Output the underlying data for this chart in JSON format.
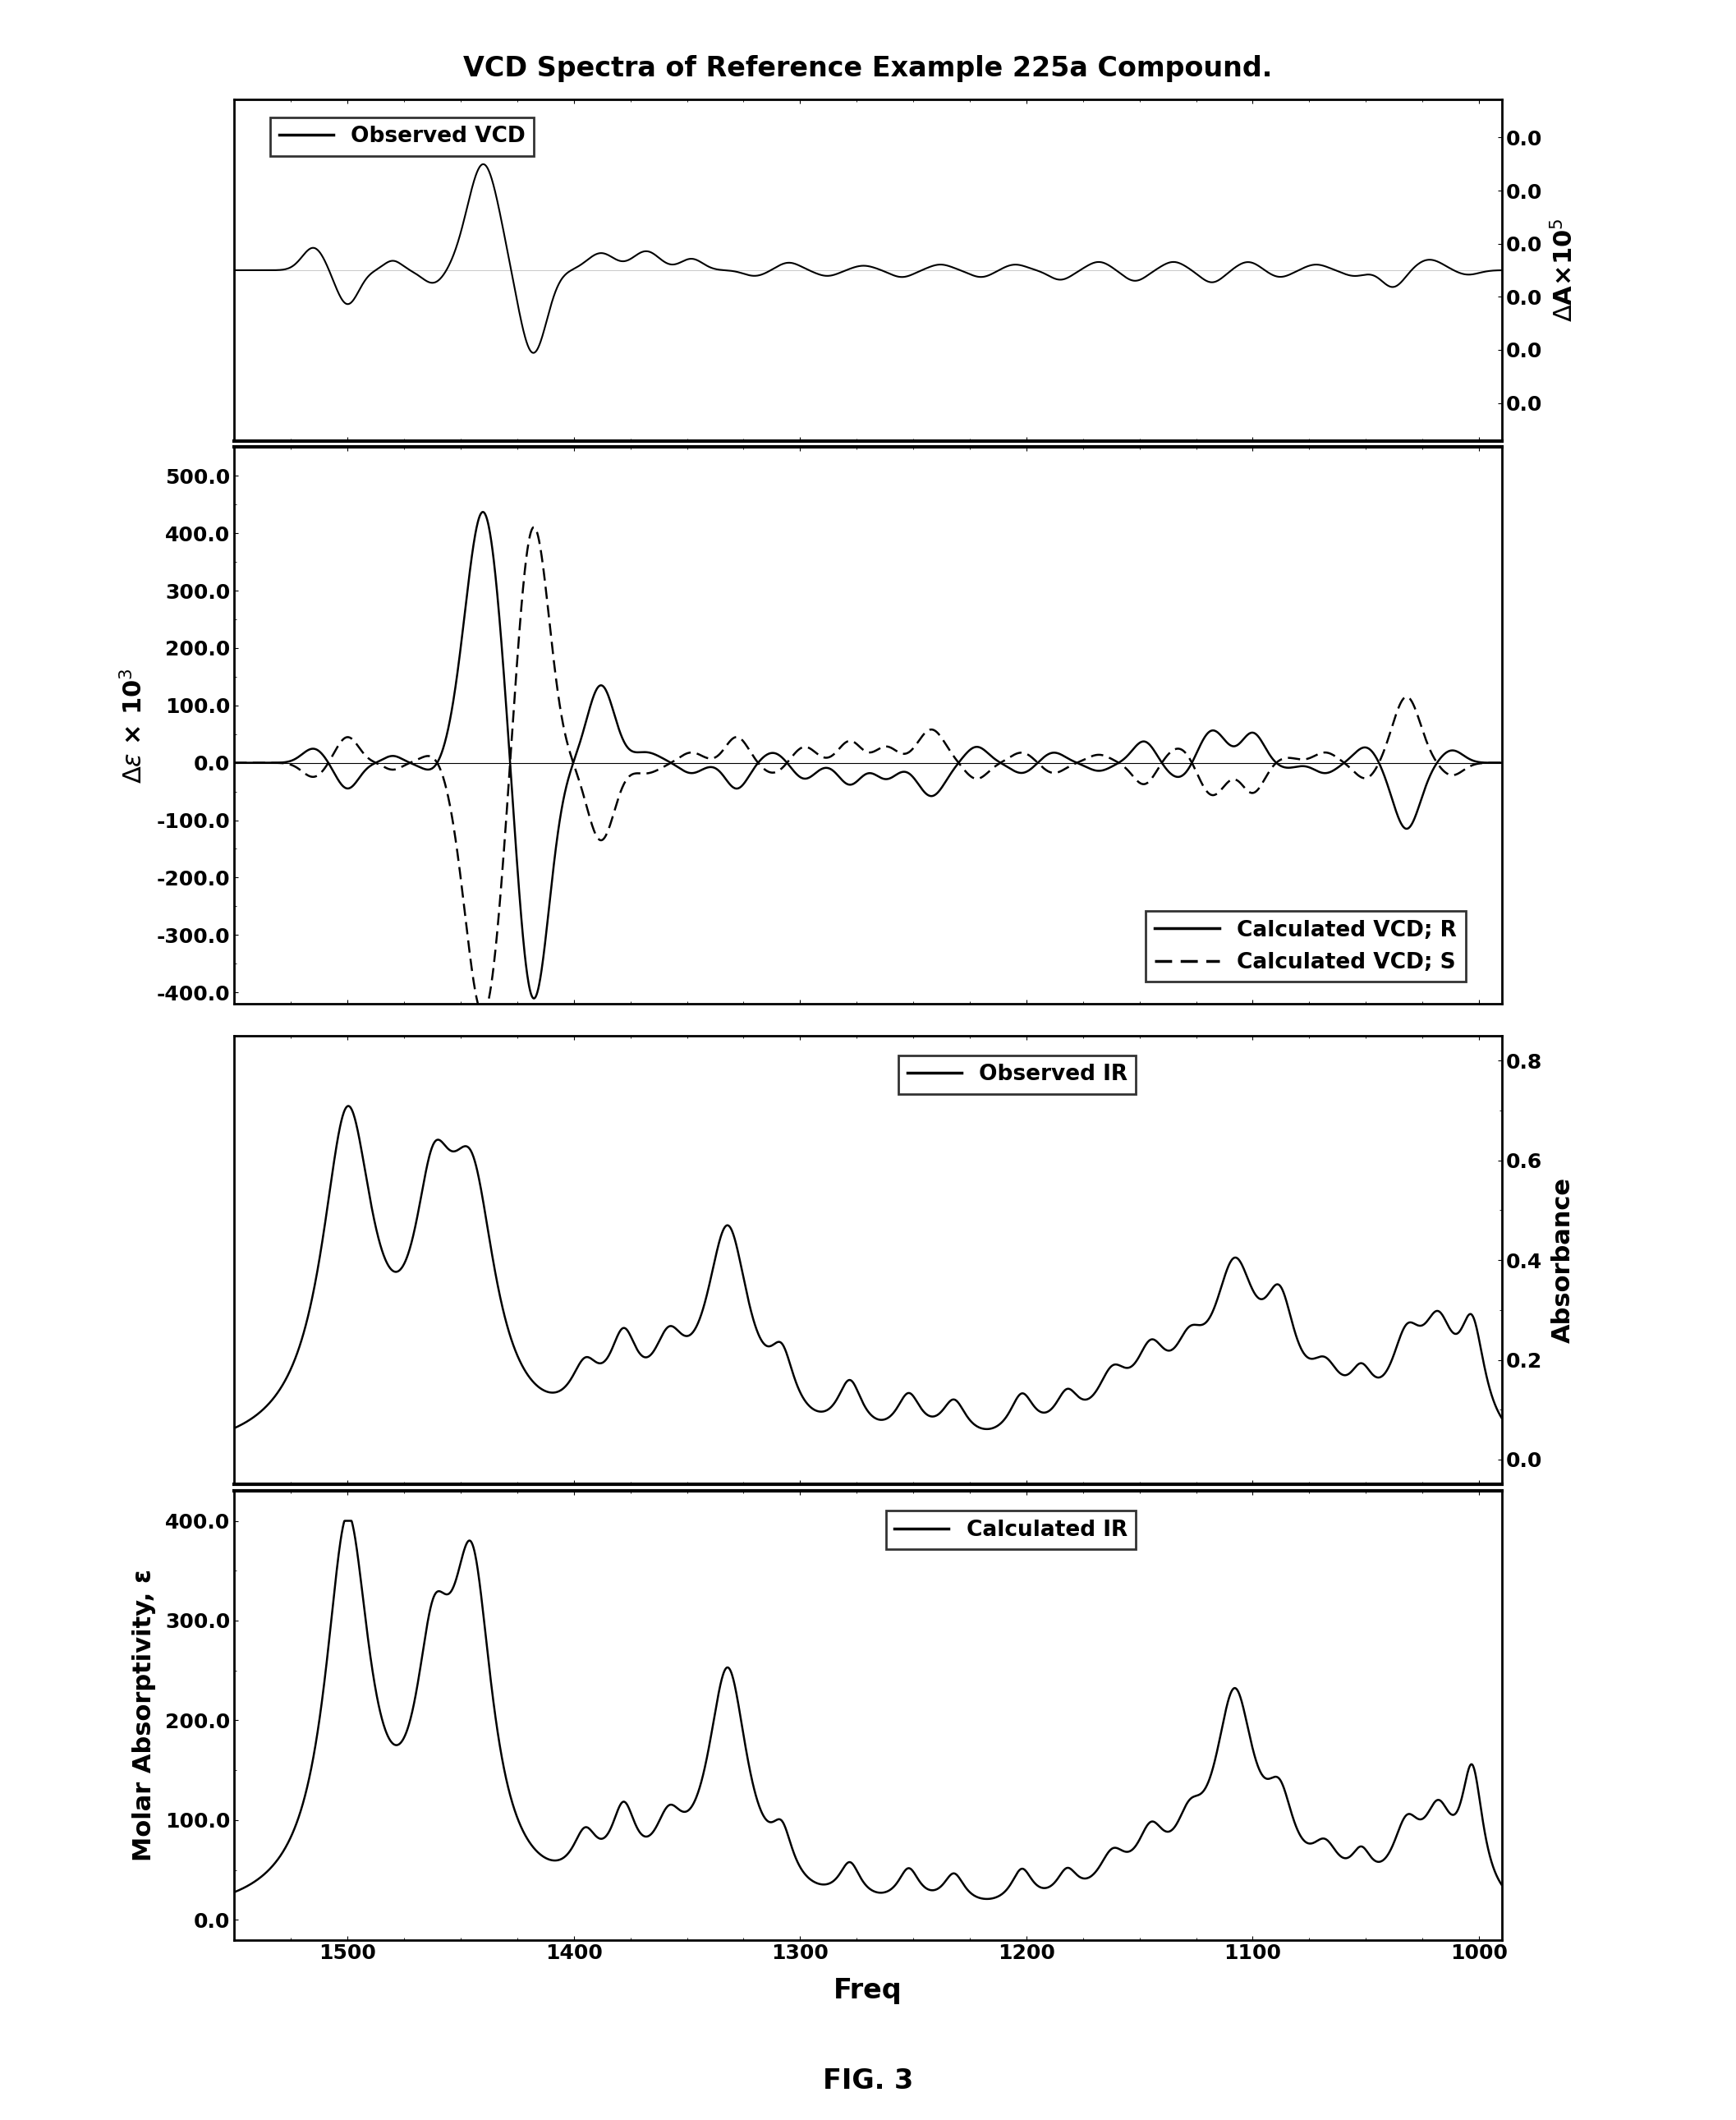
{
  "title": "VCD Spectra of Reference Example 225a Compound.",
  "fig_label": "FIG. 3",
  "top_panel": {
    "obs_vcd_ylabel_right": "ΔA × 10⁵",
    "calc_vcd_ylabel_left": "Δε × 10³",
    "calc_vcd_ylim": [
      -400,
      500
    ],
    "calc_vcd_yticks": [
      -400.0,
      -300.0,
      -200.0,
      -100.0,
      0.0,
      100.0,
      200.0,
      300.0,
      400.0,
      500.0
    ],
    "obs_vcd_ytick_labels": [
      "0.0",
      "0.0",
      "0.0",
      "0.0",
      "0.0",
      "0.0"
    ],
    "legend1_label": "Observed VCD",
    "legend2_label_r": "Calculated VCD; R",
    "legend2_label_s": "Calculated VCD; S"
  },
  "bottom_panel": {
    "calc_ir_ylabel_left": "Molar Absorptivity, ε",
    "obs_ir_ylabel_right": "Absorbance",
    "obs_ir_yticks": [
      0.0,
      0.2,
      0.4,
      0.6,
      0.8
    ],
    "calc_ir_yticks": [
      0.0,
      100.0,
      200.0,
      300.0,
      400.0
    ],
    "legend3_label": "Observed IR",
    "legend4_label": "Calculated IR"
  },
  "xlabel": "Freq",
  "xticks": [
    1500,
    1400,
    1300,
    1200,
    1100,
    1000
  ],
  "xlim": [
    1550,
    990
  ],
  "line_color": "#000000",
  "background_color": "#ffffff",
  "title_fontsize": 24,
  "axis_label_fontsize": 22,
  "tick_label_fontsize": 18,
  "legend_fontsize": 19
}
